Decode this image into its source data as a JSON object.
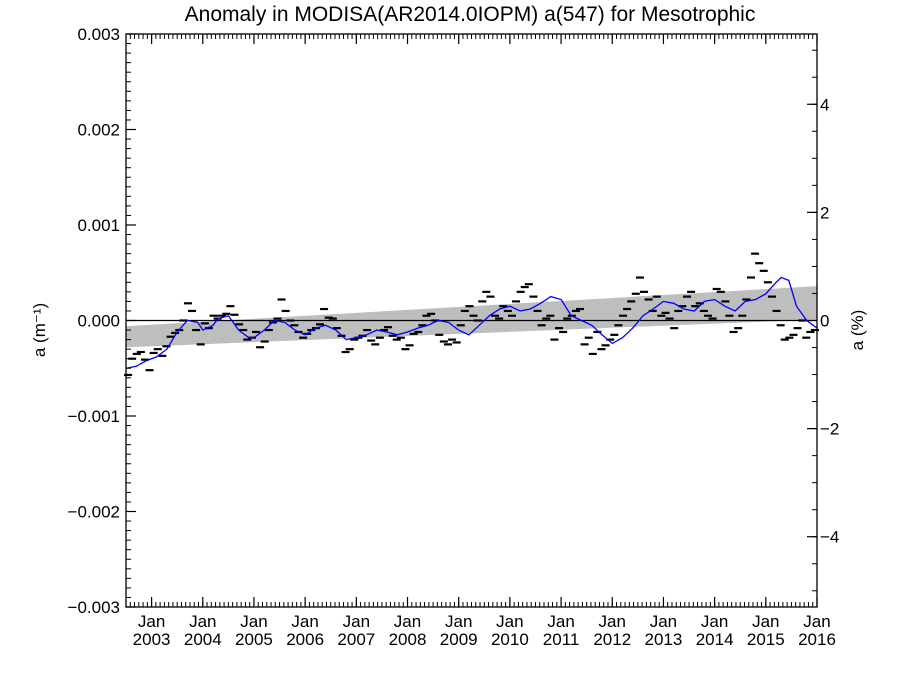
{
  "chart_data": {
    "type": "line",
    "title": "Anomaly in MODISA(AR2014.0IOPM) a(547) for Mesotrophic",
    "ylabel": "a (m⁻¹)",
    "ylabel_right": "a (%)",
    "ylim": [
      -0.003,
      0.003
    ],
    "ylim_right": [
      -5.3,
      5.3
    ],
    "yticks": [
      {
        "value": 0.003,
        "label": "0.003"
      },
      {
        "value": 0.002,
        "label": "0.002"
      },
      {
        "value": 0.001,
        "label": "0.001"
      },
      {
        "value": 0.0,
        "label": "0.000"
      },
      {
        "value": -0.001,
        "label": "−0.001"
      },
      {
        "value": -0.002,
        "label": "−0.002"
      },
      {
        "value": -0.003,
        "label": "−0.003"
      }
    ],
    "yticks_right": [
      {
        "value": 4,
        "label": "4"
      },
      {
        "value": 2,
        "label": "2"
      },
      {
        "value": 0,
        "label": "0"
      },
      {
        "value": -2,
        "label": "−2"
      },
      {
        "value": -4,
        "label": "−4"
      }
    ],
    "xlim": [
      2002.5,
      2016.0
    ],
    "xticks": [
      {
        "value": 2003,
        "month": "Jan",
        "year": "2003"
      },
      {
        "value": 2004,
        "month": "Jan",
        "year": "2004"
      },
      {
        "value": 2005,
        "month": "Jan",
        "year": "2005"
      },
      {
        "value": 2006,
        "month": "Jan",
        "year": "2006"
      },
      {
        "value": 2007,
        "month": "Jan",
        "year": "2007"
      },
      {
        "value": 2008,
        "month": "Jan",
        "year": "2008"
      },
      {
        "value": 2009,
        "month": "Jan",
        "year": "2009"
      },
      {
        "value": 2010,
        "month": "Jan",
        "year": "2010"
      },
      {
        "value": 2011,
        "month": "Jan",
        "year": "2011"
      },
      {
        "value": 2012,
        "month": "Jan",
        "year": "2012"
      },
      {
        "value": 2013,
        "month": "Jan",
        "year": "2013"
      },
      {
        "value": 2014,
        "month": "Jan",
        "year": "2014"
      },
      {
        "value": 2015,
        "month": "Jan",
        "year": "2015"
      },
      {
        "value": 2016,
        "month": "Jan",
        "year": "2016"
      }
    ],
    "grid": false,
    "zero_line": true,
    "trend_band": {
      "x": [
        2002.5,
        2016.0
      ],
      "lower": [
        -0.00028,
        1e-05
      ],
      "upper": [
        -6e-05,
        0.00036
      ],
      "color": "#bebebe"
    },
    "series": [
      {
        "style": "dash-markers",
        "color": "#000000",
        "x": [
          2002.54,
          2002.62,
          2002.71,
          2002.79,
          2002.87,
          2002.96,
          2003.04,
          2003.12,
          2003.21,
          2003.29,
          2003.37,
          2003.46,
          2003.54,
          2003.62,
          2003.71,
          2003.79,
          2003.87,
          2003.96,
          2004.04,
          2004.12,
          2004.21,
          2004.29,
          2004.37,
          2004.46,
          2004.54,
          2004.62,
          2004.71,
          2004.79,
          2004.87,
          2004.96,
          2005.04,
          2005.12,
          2005.21,
          2005.29,
          2005.37,
          2005.46,
          2005.54,
          2005.62,
          2005.71,
          2005.79,
          2005.87,
          2005.96,
          2006.04,
          2006.12,
          2006.21,
          2006.29,
          2006.37,
          2006.46,
          2006.54,
          2006.62,
          2006.71,
          2006.79,
          2006.87,
          2006.96,
          2007.04,
          2007.12,
          2007.21,
          2007.29,
          2007.37,
          2007.46,
          2007.54,
          2007.62,
          2007.71,
          2007.79,
          2007.87,
          2007.96,
          2008.04,
          2008.12,
          2008.21,
          2008.29,
          2008.37,
          2008.46,
          2008.54,
          2008.62,
          2008.71,
          2008.79,
          2008.87,
          2008.96,
          2009.04,
          2009.12,
          2009.21,
          2009.29,
          2009.37,
          2009.46,
          2009.54,
          2009.62,
          2009.71,
          2009.79,
          2009.87,
          2009.96,
          2010.04,
          2010.12,
          2010.21,
          2010.29,
          2010.37,
          2010.46,
          2010.54,
          2010.62,
          2010.71,
          2010.79,
          2010.87,
          2010.96,
          2011.04,
          2011.12,
          2011.21,
          2011.29,
          2011.37,
          2011.46,
          2011.54,
          2011.62,
          2011.71,
          2011.79,
          2011.87,
          2011.96,
          2012.04,
          2012.12,
          2012.21,
          2012.29,
          2012.37,
          2012.46,
          2012.54,
          2012.62,
          2012.71,
          2012.79,
          2012.87,
          2012.96,
          2013.04,
          2013.12,
          2013.21,
          2013.29,
          2013.37,
          2013.46,
          2013.54,
          2013.62,
          2013.71,
          2013.79,
          2013.87,
          2013.96,
          2014.04,
          2014.12,
          2014.21,
          2014.29,
          2014.37,
          2014.46,
          2014.54,
          2014.62,
          2014.71,
          2014.79,
          2014.87,
          2014.96,
          2015.04,
          2015.12,
          2015.21,
          2015.29,
          2015.37,
          2015.46,
          2015.54,
          2015.62,
          2015.71,
          2015.79,
          2015.87,
          2015.96
        ],
        "y": [
          -0.00057,
          -0.0004,
          -0.00035,
          -0.00033,
          -0.00041,
          -0.00052,
          -0.00034,
          -0.0003,
          -0.00037,
          -0.00027,
          -0.00017,
          -0.00013,
          -0.0001,
          0.0,
          0.00018,
          0.0001,
          -0.0001,
          -0.00025,
          -3e-05,
          -8e-05,
          5e-05,
          2e-05,
          5e-05,
          7e-05,
          0.00015,
          6e-05,
          -4e-05,
          -0.0001,
          -0.0002,
          -0.00018,
          -0.00012,
          -0.00028,
          -0.00022,
          -0.0001,
          -2e-05,
          2e-05,
          0.00022,
          0.0001,
          0.0,
          -5e-05,
          -0.00012,
          -0.00018,
          -0.00014,
          -0.0001,
          -8e-05,
          -4e-05,
          0.00012,
          3e-05,
          2e-05,
          -8e-05,
          -0.00016,
          -0.00033,
          -0.0003,
          -0.0002,
          -0.00018,
          -0.00016,
          -0.0001,
          -0.00021,
          -0.00025,
          -0.00018,
          -0.0001,
          -7e-05,
          -0.00016,
          -0.0002,
          -0.00018,
          -0.0003,
          -0.00026,
          -0.00014,
          -0.00012,
          -5e-05,
          5e-05,
          7e-05,
          0.0,
          -0.00015,
          -0.00022,
          -0.00025,
          -0.0002,
          -0.00023,
          -5e-05,
          0.0001,
          0.00015,
          5e-05,
          0.0,
          0.0002,
          0.0003,
          0.00025,
          5e-05,
          2e-05,
          0.00015,
          0.0001,
          5e-05,
          0.0002,
          0.0003,
          0.00035,
          0.00038,
          0.00025,
          0.0001,
          -5e-05,
          2e-05,
          5e-05,
          -0.0002,
          -8e-05,
          -0.00012,
          2e-05,
          5e-05,
          0.0001,
          0.00012,
          -0.00025,
          -0.00018,
          -0.00035,
          -0.00012,
          -0.0003,
          -0.00026,
          -0.0002,
          -0.00015,
          -5e-05,
          5e-05,
          0.00012,
          0.0002,
          0.00028,
          0.00045,
          0.0003,
          0.00022,
          0.0001,
          0.00025,
          5e-05,
          8e-05,
          2e-05,
          -8e-05,
          0.0001,
          0.00015,
          0.00025,
          0.0003,
          0.00015,
          0.00018,
          0.0001,
          5e-05,
          2e-05,
          0.00033,
          0.0003,
          0.0002,
          5e-05,
          -0.00012,
          -8e-05,
          5e-05,
          0.00022,
          0.00045,
          0.0007,
          0.0006,
          0.00052,
          0.0004,
          0.00025,
          0.0001,
          -5e-05,
          -0.0002,
          -0.00018,
          -0.00015,
          -8e-05,
          0.0,
          -0.00018,
          -0.00012,
          -0.0001
        ]
      },
      {
        "style": "line",
        "color": "#0000ff",
        "x": [
          2002.5,
          2002.7,
          2002.9,
          2003.1,
          2003.3,
          2003.5,
          2003.7,
          2003.9,
          2004.0,
          2004.2,
          2004.3,
          2004.5,
          2004.7,
          2004.9,
          2005.0,
          2005.2,
          2005.4,
          2005.6,
          2005.8,
          2006.0,
          2006.2,
          2006.4,
          2006.6,
          2006.8,
          2007.0,
          2007.2,
          2007.4,
          2007.6,
          2007.8,
          2008.0,
          2008.2,
          2008.4,
          2008.6,
          2008.8,
          2009.0,
          2009.2,
          2009.4,
          2009.6,
          2009.8,
          2010.0,
          2010.2,
          2010.4,
          2010.6,
          2010.8,
          2011.0,
          2011.2,
          2011.4,
          2011.6,
          2011.8,
          2012.0,
          2012.2,
          2012.4,
          2012.6,
          2012.8,
          2013.0,
          2013.2,
          2013.4,
          2013.6,
          2013.8,
          2014.0,
          2014.2,
          2014.4,
          2014.6,
          2014.8,
          2015.0,
          2015.2,
          2015.3,
          2015.45,
          2015.6,
          2015.8,
          2016.0
        ],
        "y": [
          -0.0005,
          -0.00048,
          -0.00042,
          -0.00038,
          -0.0003,
          -0.00012,
          0.0,
          -2e-05,
          -0.0001,
          -5e-05,
          2e-05,
          5e-05,
          -0.0001,
          -0.00018,
          -0.00018,
          -0.0001,
          0.0,
          -2e-05,
          -0.0001,
          -0.00015,
          -8e-05,
          -5e-05,
          -0.0001,
          -0.0002,
          -0.00018,
          -0.00015,
          -0.0001,
          -0.00012,
          -0.00015,
          -0.00012,
          -8e-05,
          -5e-05,
          0.0,
          -2e-05,
          -0.0001,
          -0.00015,
          -5e-05,
          5e-05,
          0.00012,
          0.00015,
          0.0001,
          0.00012,
          0.00018,
          0.00025,
          0.00022,
          5e-05,
          0.0,
          -5e-05,
          -0.00015,
          -0.00024,
          -0.00018,
          -8e-05,
          5e-05,
          0.00012,
          0.0002,
          0.00018,
          0.00012,
          0.0001,
          0.0002,
          0.00022,
          0.00015,
          0.0001,
          0.0002,
          0.00022,
          0.00028,
          0.0004,
          0.00045,
          0.00042,
          0.00015,
          0.0,
          -8e-05
        ]
      }
    ]
  }
}
